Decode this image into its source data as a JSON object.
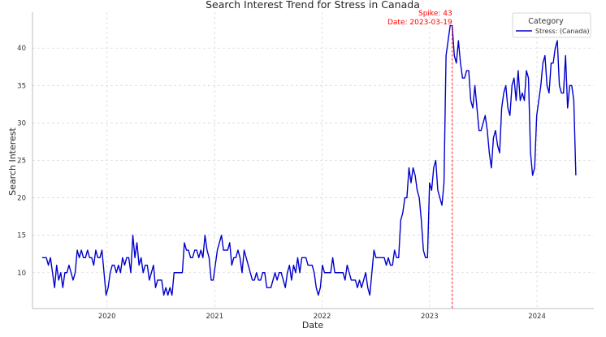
{
  "chart_data": {
    "type": "line",
    "title": "Search Interest Trend for Stress in Canada",
    "xlabel": "Date",
    "ylabel": "Search Interest",
    "x_range": [
      "2019-04-23",
      "2024-07-12"
    ],
    "ylim": [
      5.2,
      44.8
    ],
    "x_ticks": [
      {
        "date": "2020-01-01",
        "label": "2020"
      },
      {
        "date": "2021-01-01",
        "label": "2021"
      },
      {
        "date": "2022-01-01",
        "label": "2022"
      },
      {
        "date": "2023-01-01",
        "label": "2023"
      },
      {
        "date": "2024-01-01",
        "label": "2024"
      }
    ],
    "y_ticks": [
      10,
      15,
      20,
      25,
      30,
      35,
      40
    ],
    "grid": true,
    "legend": {
      "title": "Category",
      "placement": "top-right"
    },
    "series": [
      {
        "name": "Stress: (Canada)",
        "color": "#0000cc",
        "start_date": "2019-05-26",
        "interval": "weekly",
        "values": [
          12,
          12,
          12,
          11,
          12,
          10,
          8,
          11,
          9,
          10,
          8,
          10,
          10,
          11,
          10,
          9,
          10,
          13,
          12,
          13,
          12,
          12,
          13,
          12,
          12,
          11,
          13,
          12,
          12,
          13,
          10,
          7,
          8,
          10,
          11,
          11,
          10,
          11,
          10,
          12,
          11,
          12,
          12,
          10,
          15,
          12,
          14,
          11,
          12,
          10,
          11,
          11,
          9,
          10,
          11,
          8,
          9,
          9,
          9,
          7,
          8,
          7,
          8,
          7,
          10,
          10,
          10,
          10,
          10,
          14,
          13,
          13,
          12,
          12,
          13,
          13,
          12,
          13,
          12,
          15,
          13,
          12,
          9,
          9,
          11,
          13,
          14,
          15,
          13,
          13,
          13,
          14,
          11,
          12,
          12,
          13,
          12,
          10,
          13,
          12,
          11,
          10,
          9,
          9,
          10,
          9,
          9,
          10,
          10,
          8,
          8,
          8,
          9,
          10,
          9,
          10,
          10,
          9,
          8,
          10,
          11,
          9,
          11,
          10,
          12,
          10,
          12,
          12,
          12,
          11,
          11,
          11,
          10,
          8,
          7,
          8,
          11,
          10,
          10,
          10,
          10,
          12,
          10,
          10,
          10,
          10,
          10,
          9,
          11,
          10,
          9,
          9,
          9,
          8,
          9,
          8,
          9,
          10,
          8,
          7,
          10,
          13,
          12,
          12,
          12,
          12,
          12,
          11,
          12,
          11,
          11,
          13,
          12,
          12,
          17,
          18,
          20,
          20,
          24,
          22,
          24,
          23,
          21,
          20,
          17,
          13,
          12,
          12,
          22,
          21,
          24,
          25,
          21,
          20,
          19,
          22,
          39,
          41,
          43,
          43,
          39,
          38,
          41,
          38,
          36,
          36,
          37,
          37,
          33,
          32,
          35,
          32,
          29,
          29,
          30,
          31,
          29,
          26,
          24,
          28,
          29,
          27,
          26,
          32,
          34,
          35,
          32,
          31,
          35,
          36,
          33,
          37,
          33,
          34,
          33,
          37,
          36,
          26,
          23,
          24,
          31,
          33,
          35,
          38,
          39,
          35,
          34,
          38,
          38,
          40,
          41,
          35,
          34,
          34,
          39,
          32,
          35,
          35,
          33,
          23
        ]
      }
    ],
    "annotation": {
      "date": "2023-03-19",
      "value": 43,
      "line1": "Spike: 43",
      "line2": "Date: 2023-03-19",
      "color": "#ff0000"
    }
  }
}
